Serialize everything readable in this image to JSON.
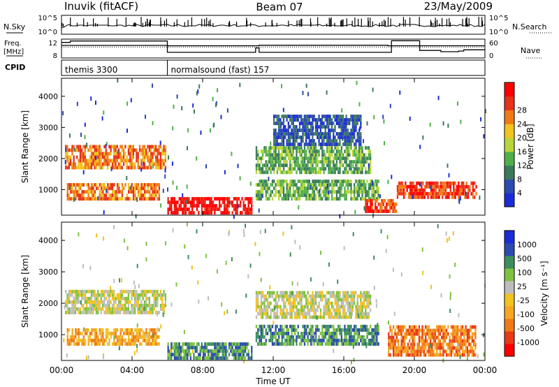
{
  "header": {
    "station": "Inuvik (fitACF)",
    "beam": "Beam 07",
    "date": "23/May/2009"
  },
  "chart_data": [
    {
      "type": "line",
      "panel": "noise",
      "left_label": "N.Sky",
      "right_label": "N.Search",
      "left_ticks": [
        "10^5",
        "10^0"
      ],
      "right_ticks": [
        "10^5",
        "10^0"
      ]
    },
    {
      "type": "line",
      "panel": "frequency",
      "left_label": [
        "Freq.",
        "[MHz]"
      ],
      "right_label": "Nave",
      "left_ticks": [
        "12",
        "8"
      ],
      "right_ticks": [
        "60",
        "0"
      ],
      "freq_mhz": {
        "x": [
          0,
          0.2,
          0.5,
          6.0,
          11.0,
          11.2,
          18.5,
          18.6,
          20.0,
          20.3,
          22.5,
          24.0
        ],
        "y": [
          11.3,
          11.3,
          11.6,
          10.6,
          10.6,
          10.7,
          10.6,
          10.6,
          10.6,
          10.6,
          10.6,
          10.6
        ]
      },
      "nave": {
        "x": [
          0,
          6.0,
          6.0,
          10.8,
          11.0,
          11.2,
          18.6,
          18.7,
          20.0,
          20.3,
          21.5,
          22.5,
          22.8,
          24.0
        ],
        "y": [
          40,
          38,
          18,
          18,
          32,
          18,
          18,
          55,
          55,
          24,
          20,
          22,
          26,
          26
        ]
      },
      "nave_ref": 35
    },
    {
      "type": "table",
      "panel": "cpid",
      "label": "CPID",
      "segments": [
        {
          "start": 0,
          "end": 6.0,
          "name": "themis 3300"
        },
        {
          "start": 6.0,
          "end": 24,
          "name": "normalsound (fast) 157"
        }
      ]
    },
    {
      "type": "heatmap",
      "panel": "power",
      "ylabel": "Slant Range [km]",
      "yticks": [
        1000,
        2000,
        3000,
        4000
      ],
      "ylim": [
        180,
        4580
      ],
      "xlim": [
        0,
        24
      ],
      "colorbar_label": "Power [dB]",
      "colorbar_ticks": [
        4,
        8,
        12,
        16,
        20,
        24,
        28
      ],
      "colors": [
        "#1c2bd9",
        "#2b4bb0",
        "#3c7a5c",
        "#52b04a",
        "#b8d63a",
        "#f2c21e",
        "#f07a16",
        "#e8321a",
        "#ff0000"
      ],
      "regions": [
        {
          "x": [
            0.2,
            5.9
          ],
          "y": [
            1650,
            2350
          ],
          "level": 6
        },
        {
          "x": [
            0.3,
            5.5
          ],
          "y": [
            650,
            1150
          ],
          "level": 6
        },
        {
          "x": [
            6.0,
            10.8
          ],
          "y": [
            200,
            650
          ],
          "level": 8
        },
        {
          "x": [
            11.0,
            17.5
          ],
          "y": [
            1500,
            2350
          ],
          "level": 3
        },
        {
          "x": [
            11.0,
            18.0
          ],
          "y": [
            650,
            1250
          ],
          "level": 3
        },
        {
          "x": [
            17.2,
            19.0
          ],
          "y": [
            250,
            650
          ],
          "level": 7
        },
        {
          "x": [
            19.0,
            23.5
          ],
          "y": [
            700,
            1150
          ],
          "level": 7
        },
        {
          "x": [
            12.0,
            17.0
          ],
          "y": [
            2400,
            3300
          ],
          "level": 1
        }
      ]
    },
    {
      "type": "heatmap",
      "panel": "velocity",
      "ylabel": "Slant Range [km]",
      "yticks": [
        1000,
        2000,
        3000,
        4000
      ],
      "ylim": [
        180,
        4580
      ],
      "xlim": [
        0,
        24
      ],
      "colorbar_label": "Velocity [m s⁻¹]",
      "colorbar_ticks": [
        "1000",
        "500",
        "100",
        "25",
        "-25",
        "-100",
        "-500",
        "-1000"
      ],
      "colors": [
        "#ff0000",
        "#e83a16",
        "#f07a16",
        "#f5a623",
        "#f2c21e",
        "#bdbdbd",
        "#7fc241",
        "#3c8f5c",
        "#2b4bb0",
        "#1c2bd9"
      ],
      "regions": [
        {
          "x": [
            0.2,
            5.9
          ],
          "y": [
            1650,
            2350
          ],
          "level": 5
        },
        {
          "x": [
            0.3,
            5.5
          ],
          "y": [
            650,
            1150
          ],
          "level": 3
        },
        {
          "x": [
            6.0,
            10.8
          ],
          "y": [
            200,
            650
          ],
          "level": 7
        },
        {
          "x": [
            11.0,
            17.5
          ],
          "y": [
            1500,
            2350
          ],
          "level": 5
        },
        {
          "x": [
            11.0,
            18.0
          ],
          "y": [
            650,
            1250
          ],
          "level": 7
        },
        {
          "x": [
            18.5,
            23.5
          ],
          "y": [
            300,
            1250
          ],
          "level": 2
        }
      ]
    }
  ],
  "xaxis": {
    "label": "Time UT",
    "ticks": [
      "00:00",
      "04:00",
      "08:00",
      "12:00",
      "16:00",
      "20:00",
      "00:00"
    ]
  }
}
